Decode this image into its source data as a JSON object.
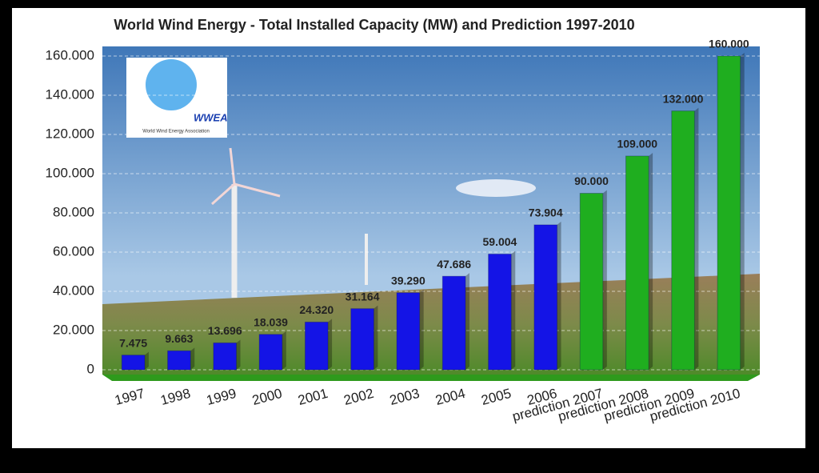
{
  "chart_data": {
    "type": "bar",
    "title": "World Wind Energy - Total Installed Capacity (MW) and Prediction 1997-2010",
    "categories": [
      "1997",
      "1998",
      "1999",
      "2000",
      "2001",
      "2002",
      "2003",
      "2004",
      "2005",
      "2006",
      "prediction 2007",
      "prediction 2008",
      "prediction 2009",
      "prediction 2010"
    ],
    "values": [
      7475,
      9663,
      13696,
      18039,
      24320,
      31164,
      39290,
      47686,
      59004,
      73904,
      90000,
      109000,
      132000,
      160000
    ],
    "value_labels": [
      "7.475",
      "9.663",
      "13.696",
      "18.039",
      "24.320",
      "31.164",
      "39.290",
      "47.686",
      "59.004",
      "73.904",
      "90.000",
      "109.000",
      "132.000",
      "160.000"
    ],
    "colors": [
      "#1414e6",
      "#1414e6",
      "#1414e6",
      "#1414e6",
      "#1414e6",
      "#1414e6",
      "#1414e6",
      "#1414e6",
      "#1414e6",
      "#1414e6",
      "#1fae1f",
      "#1fae1f",
      "#1fae1f",
      "#1fae1f"
    ],
    "ylim": [
      0,
      160000
    ],
    "yticks": [
      0,
      {
        "value": 20000,
        "label": "20.000"
      },
      {
        "value": 40000,
        "label": "40.000"
      },
      {
        "value": 60000,
        "label": "60.000"
      },
      {
        "value": 80000,
        "label": "80.000"
      },
      {
        "value": 100000,
        "label": "100.000"
      },
      {
        "value": 120000,
        "label": "120.000"
      },
      {
        "value": 140000,
        "label": "140.000"
      },
      {
        "value": 160000,
        "label": "160.000"
      }
    ],
    "grid": true
  },
  "logo": {
    "title": "WWEA",
    "subtitle": "World Wind Energy Association"
  }
}
